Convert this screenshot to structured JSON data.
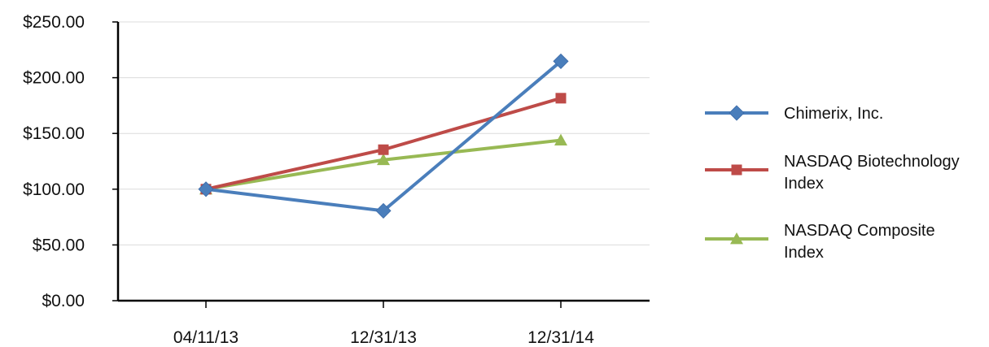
{
  "chart_data": {
    "type": "line",
    "title": "",
    "xlabel": "",
    "ylabel": "",
    "x": [
      "04/11/13",
      "12/31/13",
      "12/31/14"
    ],
    "ylim": [
      0,
      250
    ],
    "yticks": [
      0,
      50,
      100,
      150,
      200,
      250
    ],
    "ytick_labels": [
      "$0.00",
      "$50.00",
      "$100.00",
      "$150.00",
      "$200.00",
      "$250.00"
    ],
    "grid": true,
    "legend_position": "right",
    "series": [
      {
        "name": "Chimerix, Inc.",
        "legend_lines": [
          "Chimerix, Inc."
        ],
        "values": [
          100,
          80.6,
          214.7
        ],
        "color": "#4a7ebb",
        "marker": "diamond"
      },
      {
        "name": "NASDAQ Biotechnology Index",
        "legend_lines": [
          "NASDAQ Biotechnology",
          "Index"
        ],
        "values": [
          100,
          135.4,
          181.6
        ],
        "color": "#be4b48",
        "marker": "square"
      },
      {
        "name": "NASDAQ Composite Index",
        "legend_lines": [
          "NASDAQ Composite",
          "Index"
        ],
        "values": [
          100,
          126.3,
          143.9
        ],
        "color": "#98b954",
        "marker": "triangle"
      }
    ]
  }
}
